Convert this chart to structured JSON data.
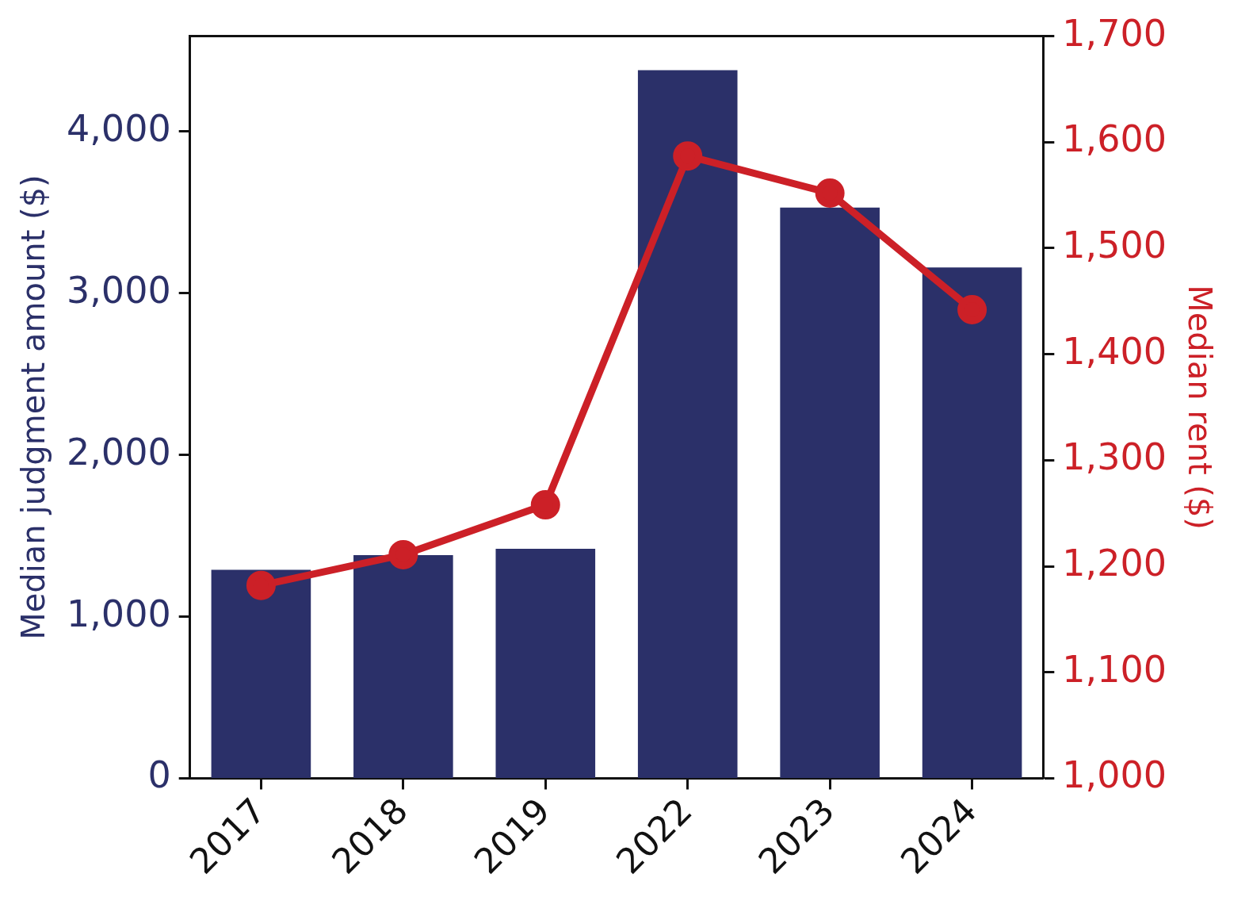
{
  "chart_data": {
    "type": "bar",
    "categories": [
      "2017",
      "2018",
      "2019",
      "2022",
      "2023",
      "2024"
    ],
    "xlabel": null,
    "ylabel": "Median judgment amount ($)",
    "y2label": "Median rent ($)",
    "series": [
      {
        "color": "#2b3069",
        "values": [
          1290,
          1380,
          1420,
          4380,
          3530,
          3160
        ]
      },
      {
        "type": "line",
        "axis": "y2",
        "color": "#cc2027",
        "values": [
          1182,
          1211,
          1258,
          1587,
          1552,
          1442
        ]
      }
    ],
    "ylim": [
      0,
      4590
    ],
    "yticks": [
      {
        "value": 0,
        "label": "0"
      },
      {
        "value": 1000,
        "label": "1,000"
      },
      {
        "value": 2000,
        "label": "2,000"
      },
      {
        "value": 3000,
        "label": "3,000"
      },
      {
        "value": 4000,
        "label": "4,000"
      }
    ],
    "y2lim": [
      1000,
      1700
    ],
    "y2ticks": [
      {
        "value": 1000,
        "label": "1,000"
      },
      {
        "value": 1100,
        "label": "1,100"
      },
      {
        "value": 1200,
        "label": "1,200"
      },
      {
        "value": 1300,
        "label": "1,300"
      },
      {
        "value": 1400,
        "label": "1,400"
      },
      {
        "value": 1500,
        "label": "1,500"
      },
      {
        "value": 1600,
        "label": "1,600"
      },
      {
        "value": 1700,
        "label": "1,700"
      }
    ],
    "marker": "circle",
    "line_style": "solid",
    "grid": false,
    "legend": false
  }
}
